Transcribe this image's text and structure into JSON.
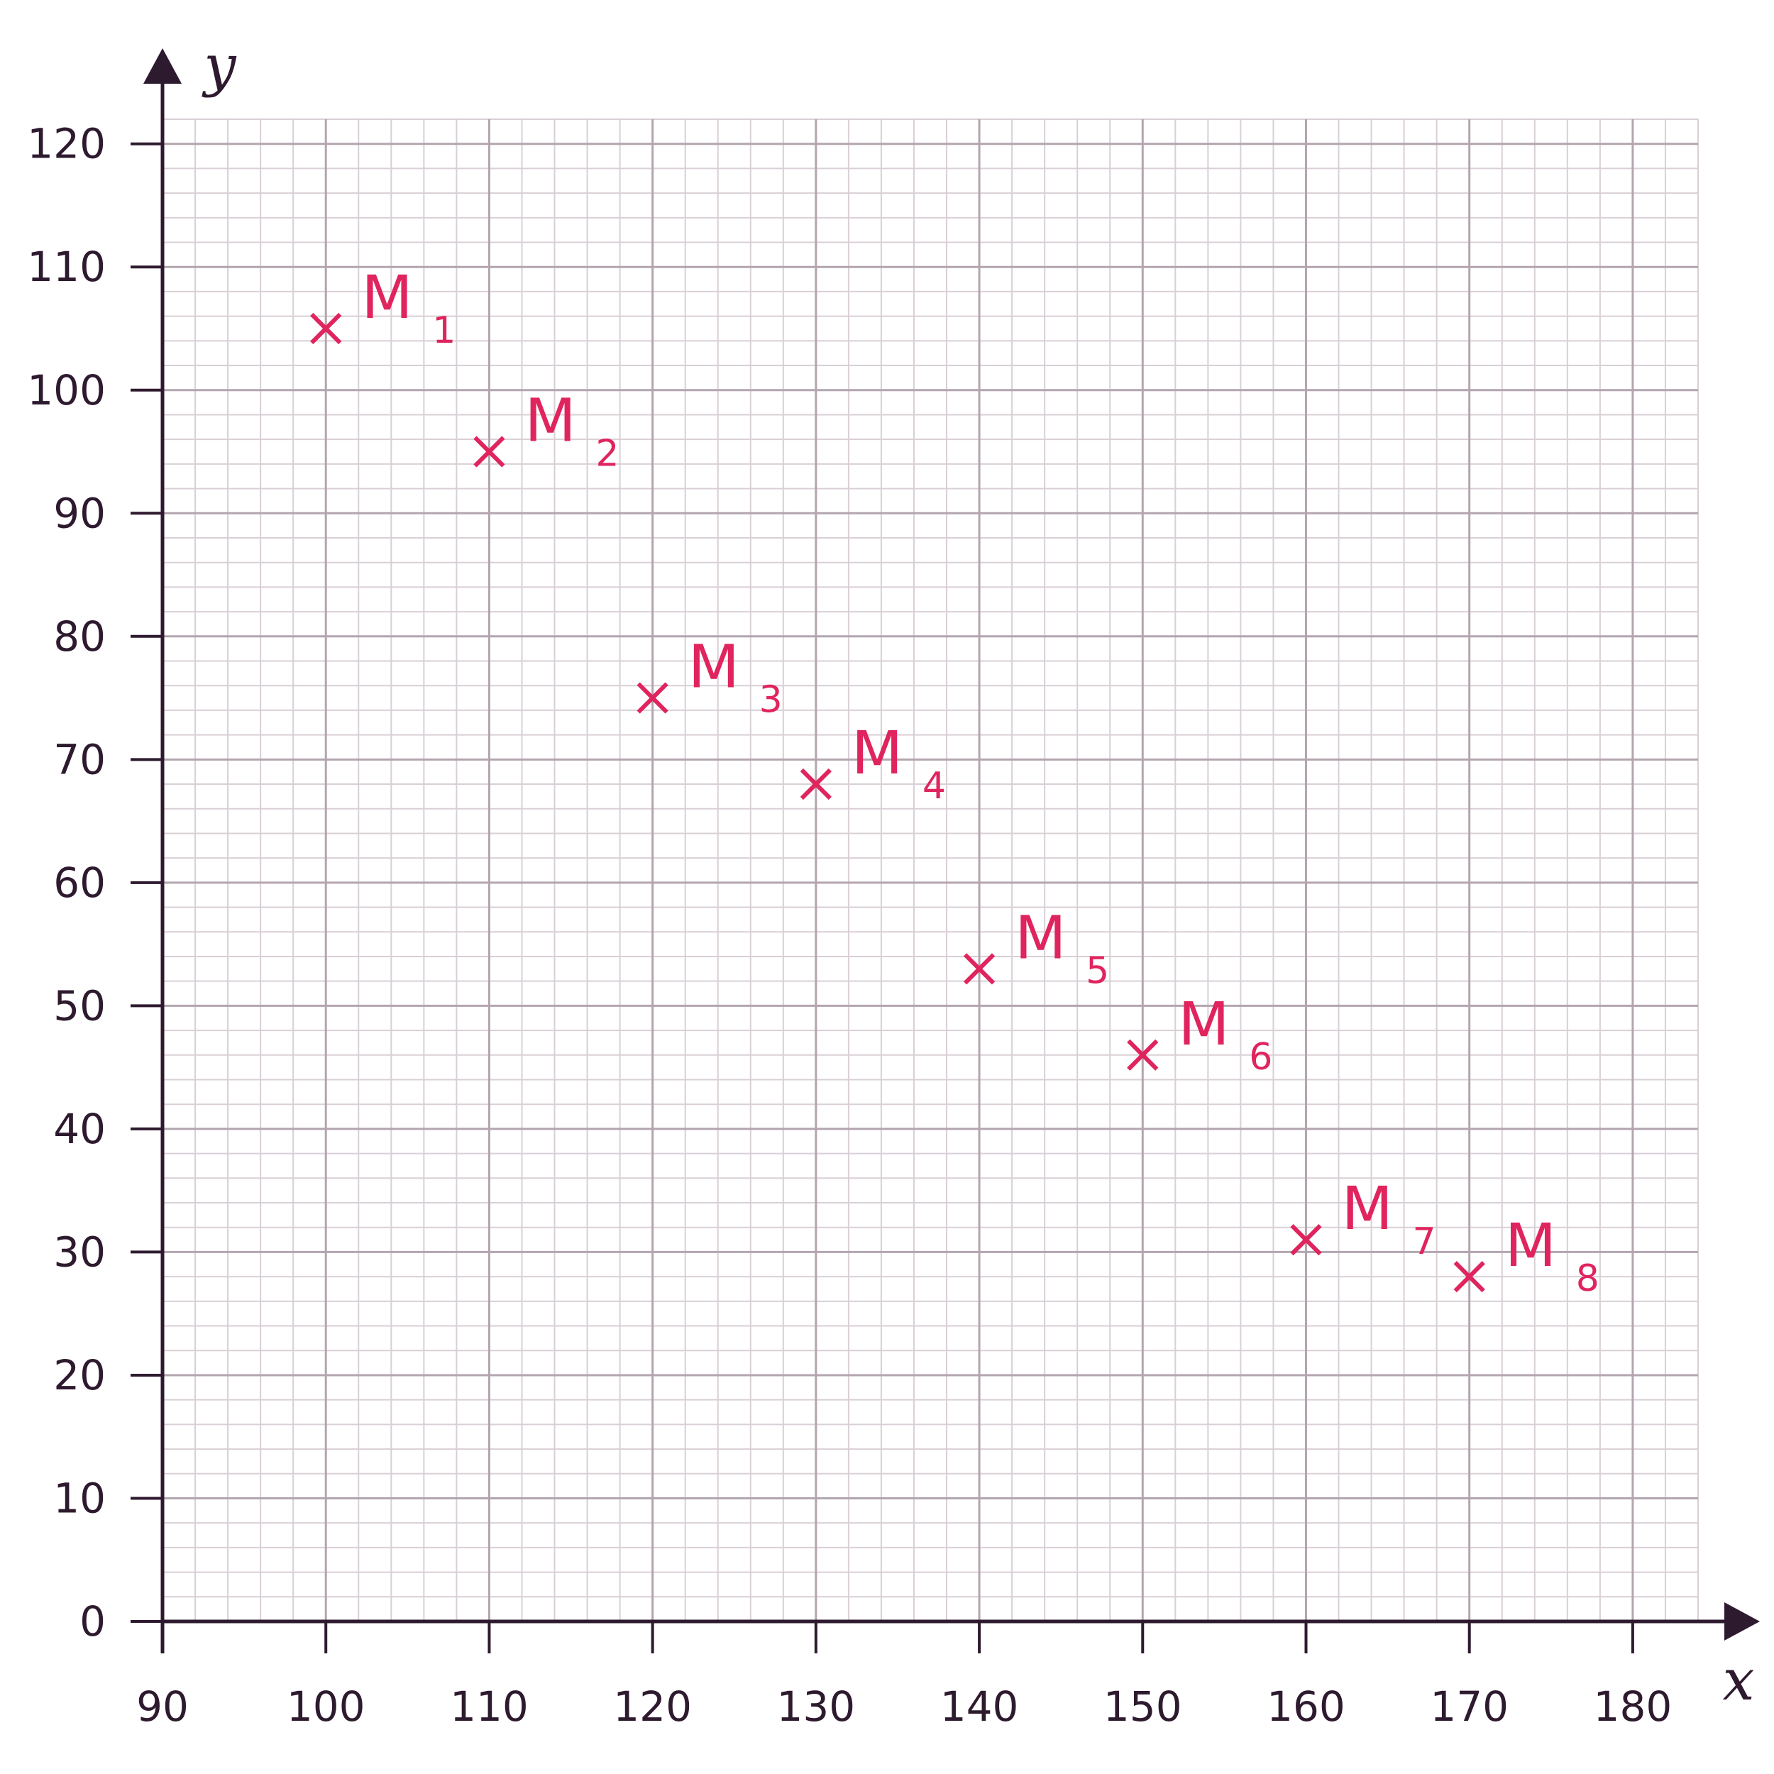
{
  "chart_data": {
    "type": "scatter",
    "x_label": "x",
    "y_label": "y",
    "x": [
      100,
      110,
      120,
      130,
      140,
      150,
      160,
      170
    ],
    "series": [
      {
        "color": "#e0245e",
        "values": [
          105,
          95,
          75,
          68,
          53,
          46,
          31,
          28
        ]
      }
    ],
    "point_labels": [
      "M",
      "M",
      "M",
      "M",
      "M",
      "M",
      "M",
      "M"
    ],
    "point_subscripts": [
      "1",
      "2",
      "3",
      "4",
      "5",
      "6",
      "7",
      "8"
    ],
    "xlim": [
      90,
      184
    ],
    "ylim": [
      0,
      122
    ],
    "xticks": [
      90,
      100,
      110,
      120,
      130,
      140,
      150,
      160,
      170,
      180
    ],
    "yticks": [
      0,
      10,
      20,
      30,
      40,
      50,
      60,
      70,
      80,
      90,
      100,
      110,
      120
    ],
    "x_minor_step": 2,
    "y_minor_step": 2,
    "grid": true
  }
}
